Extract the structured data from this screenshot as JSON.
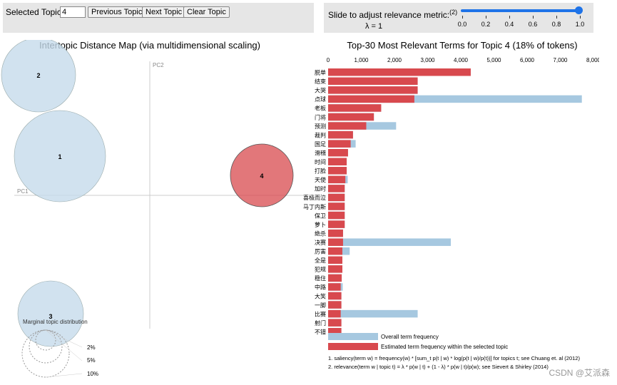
{
  "controls": {
    "selected_topic_label": "Selected Topic:",
    "selected_topic_value": "4",
    "prev_label": "Previous Topic",
    "next_label": "Next Topic",
    "clear_label": "Clear Topic"
  },
  "slider": {
    "label": "Slide to adjust relevance metric:",
    "footnote_marker": "(2)",
    "lambda_text": "λ = 1",
    "value": 1.0,
    "ticks": [
      "0.0",
      "0.2",
      "0.4",
      "0.6",
      "0.8",
      "1.0"
    ]
  },
  "watermark": "CSDN @艾派森",
  "chart_data": [
    {
      "type": "scatter",
      "title": "Intertopic Distance Map (via multidimensional scaling)",
      "xlabel": "PC1",
      "ylabel": "PC2",
      "topics": [
        {
          "id": "1",
          "size": "large",
          "selected": false
        },
        {
          "id": "2",
          "size": "medium",
          "selected": false
        },
        {
          "id": "3",
          "size": "medium",
          "selected": false
        },
        {
          "id": "4",
          "size": "medium",
          "selected": true
        }
      ],
      "colors": {
        "default": "#c6dbeb",
        "selected": "#d8494e",
        "stroke": "#555555"
      },
      "legend": {
        "title": "Marginal topic distribution",
        "entries": [
          "2%",
          "5%",
          "10%"
        ]
      }
    },
    {
      "type": "bar",
      "title": "Top-30 Most Relevant Terms for Topic 4 (18% of tokens)",
      "xlim": [
        0,
        8000
      ],
      "xticks": [
        "0",
        "1,000",
        "2,000",
        "3,000",
        "4,000",
        "5,000",
        "6,000",
        "7,000",
        "8,000"
      ],
      "xtick_values": [
        0,
        1000,
        2000,
        3000,
        4000,
        5000,
        6000,
        7000,
        8000
      ],
      "terms": [
        "脱单",
        "结束",
        "大哭",
        "点球",
        "老板",
        "门将",
        "预测",
        "裁判",
        "国足",
        "滑稽",
        "时间",
        "打脸",
        "天使",
        "加时",
        "喜极而泣",
        "马丁内斯",
        "保卫",
        "萝卜",
        "绝杀",
        "决赛",
        "厉害",
        "全是",
        "犯规",
        "稳住",
        "中路",
        "大笑",
        "一脚",
        "比赛",
        "射门",
        "不错"
      ],
      "series": [
        {
          "name": "Overall term frequency",
          "values": [
            4300,
            2700,
            2700,
            7650,
            1600,
            1380,
            2050,
            750,
            830,
            600,
            560,
            560,
            590,
            500,
            500,
            500,
            500,
            500,
            450,
            3700,
            650,
            430,
            430,
            410,
            440,
            400,
            400,
            2700,
            400,
            400
          ]
        },
        {
          "name": "Estimated term frequency within the selected topic",
          "values": [
            4300,
            2700,
            2700,
            2600,
            1600,
            1380,
            1150,
            750,
            680,
            600,
            560,
            560,
            520,
            500,
            500,
            500,
            500,
            500,
            450,
            450,
            430,
            430,
            430,
            410,
            380,
            400,
            400,
            380,
            400,
            400
          ]
        }
      ],
      "colors": {
        "overall": "#a6c8e0",
        "topic": "#d8494e"
      },
      "legend": [
        "Overall term frequency",
        "Estimated term frequency within the selected topic"
      ],
      "notes": [
        "1. saliency(term w) = frequency(w) * [sum_t p(t | w) * log(p(t | w)/p(t))] for topics t; see Chuang et. al (2012)",
        "2. relevance(term w | topic t) = λ * p(w | t) + (1 - λ) * p(w | t)/p(w); see Sievert & Shirley (2014)"
      ]
    }
  ]
}
